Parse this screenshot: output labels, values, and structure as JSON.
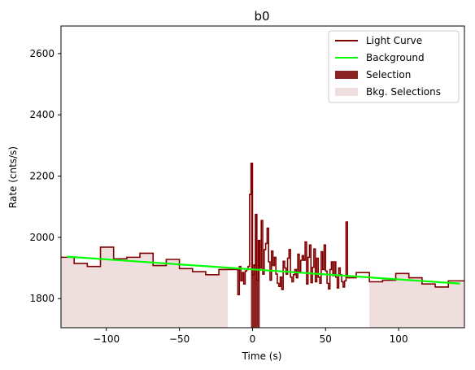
{
  "chart_data": {
    "type": "line",
    "title": "b0",
    "xlabel": "Time (s)",
    "ylabel": "Rate (cnts/s)",
    "xlim": [
      -131,
      145
    ],
    "ylim": [
      1705,
      2690
    ],
    "x_ticks": [
      -100,
      -50,
      0,
      50,
      100
    ],
    "x_tick_labels": [
      "−100",
      "−50",
      "0",
      "50",
      "100"
    ],
    "y_ticks": [
      1800,
      2000,
      2200,
      2400,
      2600
    ],
    "y_tick_labels": [
      "1800",
      "2000",
      "2200",
      "2400",
      "2600"
    ],
    "grid": false,
    "legend_position": "top-right",
    "legend": [
      {
        "label": "Light Curve",
        "kind": "line",
        "color": "#800000"
      },
      {
        "label": "Background",
        "kind": "line",
        "color": "#00ff00"
      },
      {
        "label": "Selection",
        "kind": "patch",
        "color": "#8b2323"
      },
      {
        "label": "Bkg. Selections",
        "kind": "patch",
        "color": "#efdede"
      }
    ],
    "colors": {
      "light_curve": "#800000",
      "background": "#00ff00",
      "selection": "#8b2323",
      "bkg_selection": "#efdede"
    },
    "bkg_selections": [
      [
        -131,
        -17
      ],
      [
        80,
        145
      ]
    ],
    "selection": [
      -1,
      5
    ],
    "background_fit": {
      "x": [
        -127,
        142
      ],
      "y": [
        1937,
        1849
      ]
    },
    "light_curve": {
      "x": [
        -131,
        -122,
        -113,
        -104,
        -95,
        -86,
        -77,
        -68,
        -59,
        -50,
        -41,
        -32,
        -23,
        -14,
        -10,
        -9,
        -8,
        -7,
        -6,
        -5,
        -4,
        -3,
        -2,
        -1,
        0,
        1,
        2,
        3,
        4,
        5,
        6,
        7,
        8,
        9,
        10,
        11,
        12,
        13,
        14,
        15,
        16,
        17,
        18,
        19,
        20,
        21,
        22,
        23,
        24,
        25,
        26,
        27,
        28,
        29,
        30,
        31,
        32,
        33,
        34,
        35,
        36,
        37,
        38,
        39,
        40,
        41,
        42,
        43,
        44,
        45,
        46,
        47,
        48,
        49,
        50,
        51,
        52,
        53,
        54,
        55,
        56,
        57,
        58,
        59,
        60,
        61,
        62,
        63,
        64,
        65,
        71,
        80,
        89,
        98,
        107,
        116,
        125,
        134,
        145
      ],
      "y": [
        1935,
        1915,
        1905,
        1968,
        1930,
        1935,
        1948,
        1908,
        1928,
        1898,
        1888,
        1878,
        1895,
        1895,
        1813,
        1905,
        1858,
        1885,
        1848,
        1890,
        1895,
        1905,
        2140,
        2242,
        1878,
        1910,
        2075,
        1860,
        1990,
        1900,
        2055,
        1880,
        1960,
        1980,
        2030,
        1920,
        1860,
        1955,
        1908,
        1935,
        1880,
        1850,
        1840,
        1870,
        1830,
        1922,
        1900,
        1880,
        1932,
        1960,
        1870,
        1855,
        1878,
        1895,
        1868,
        1945,
        1888,
        1925,
        1940,
        1925,
        1985,
        1848,
        1935,
        1975,
        1852,
        1902,
        1962,
        1855,
        1932,
        1870,
        1850,
        1953,
        1895,
        1975,
        1890,
        1850,
        1832,
        1895,
        1920,
        1875,
        1920,
        1870,
        1835,
        1900,
        1878,
        1855,
        1838,
        1858,
        2050,
        1868,
        1885,
        1855,
        1860,
        1882,
        1868,
        1848,
        1838,
        1858,
        1858
      ]
    }
  }
}
